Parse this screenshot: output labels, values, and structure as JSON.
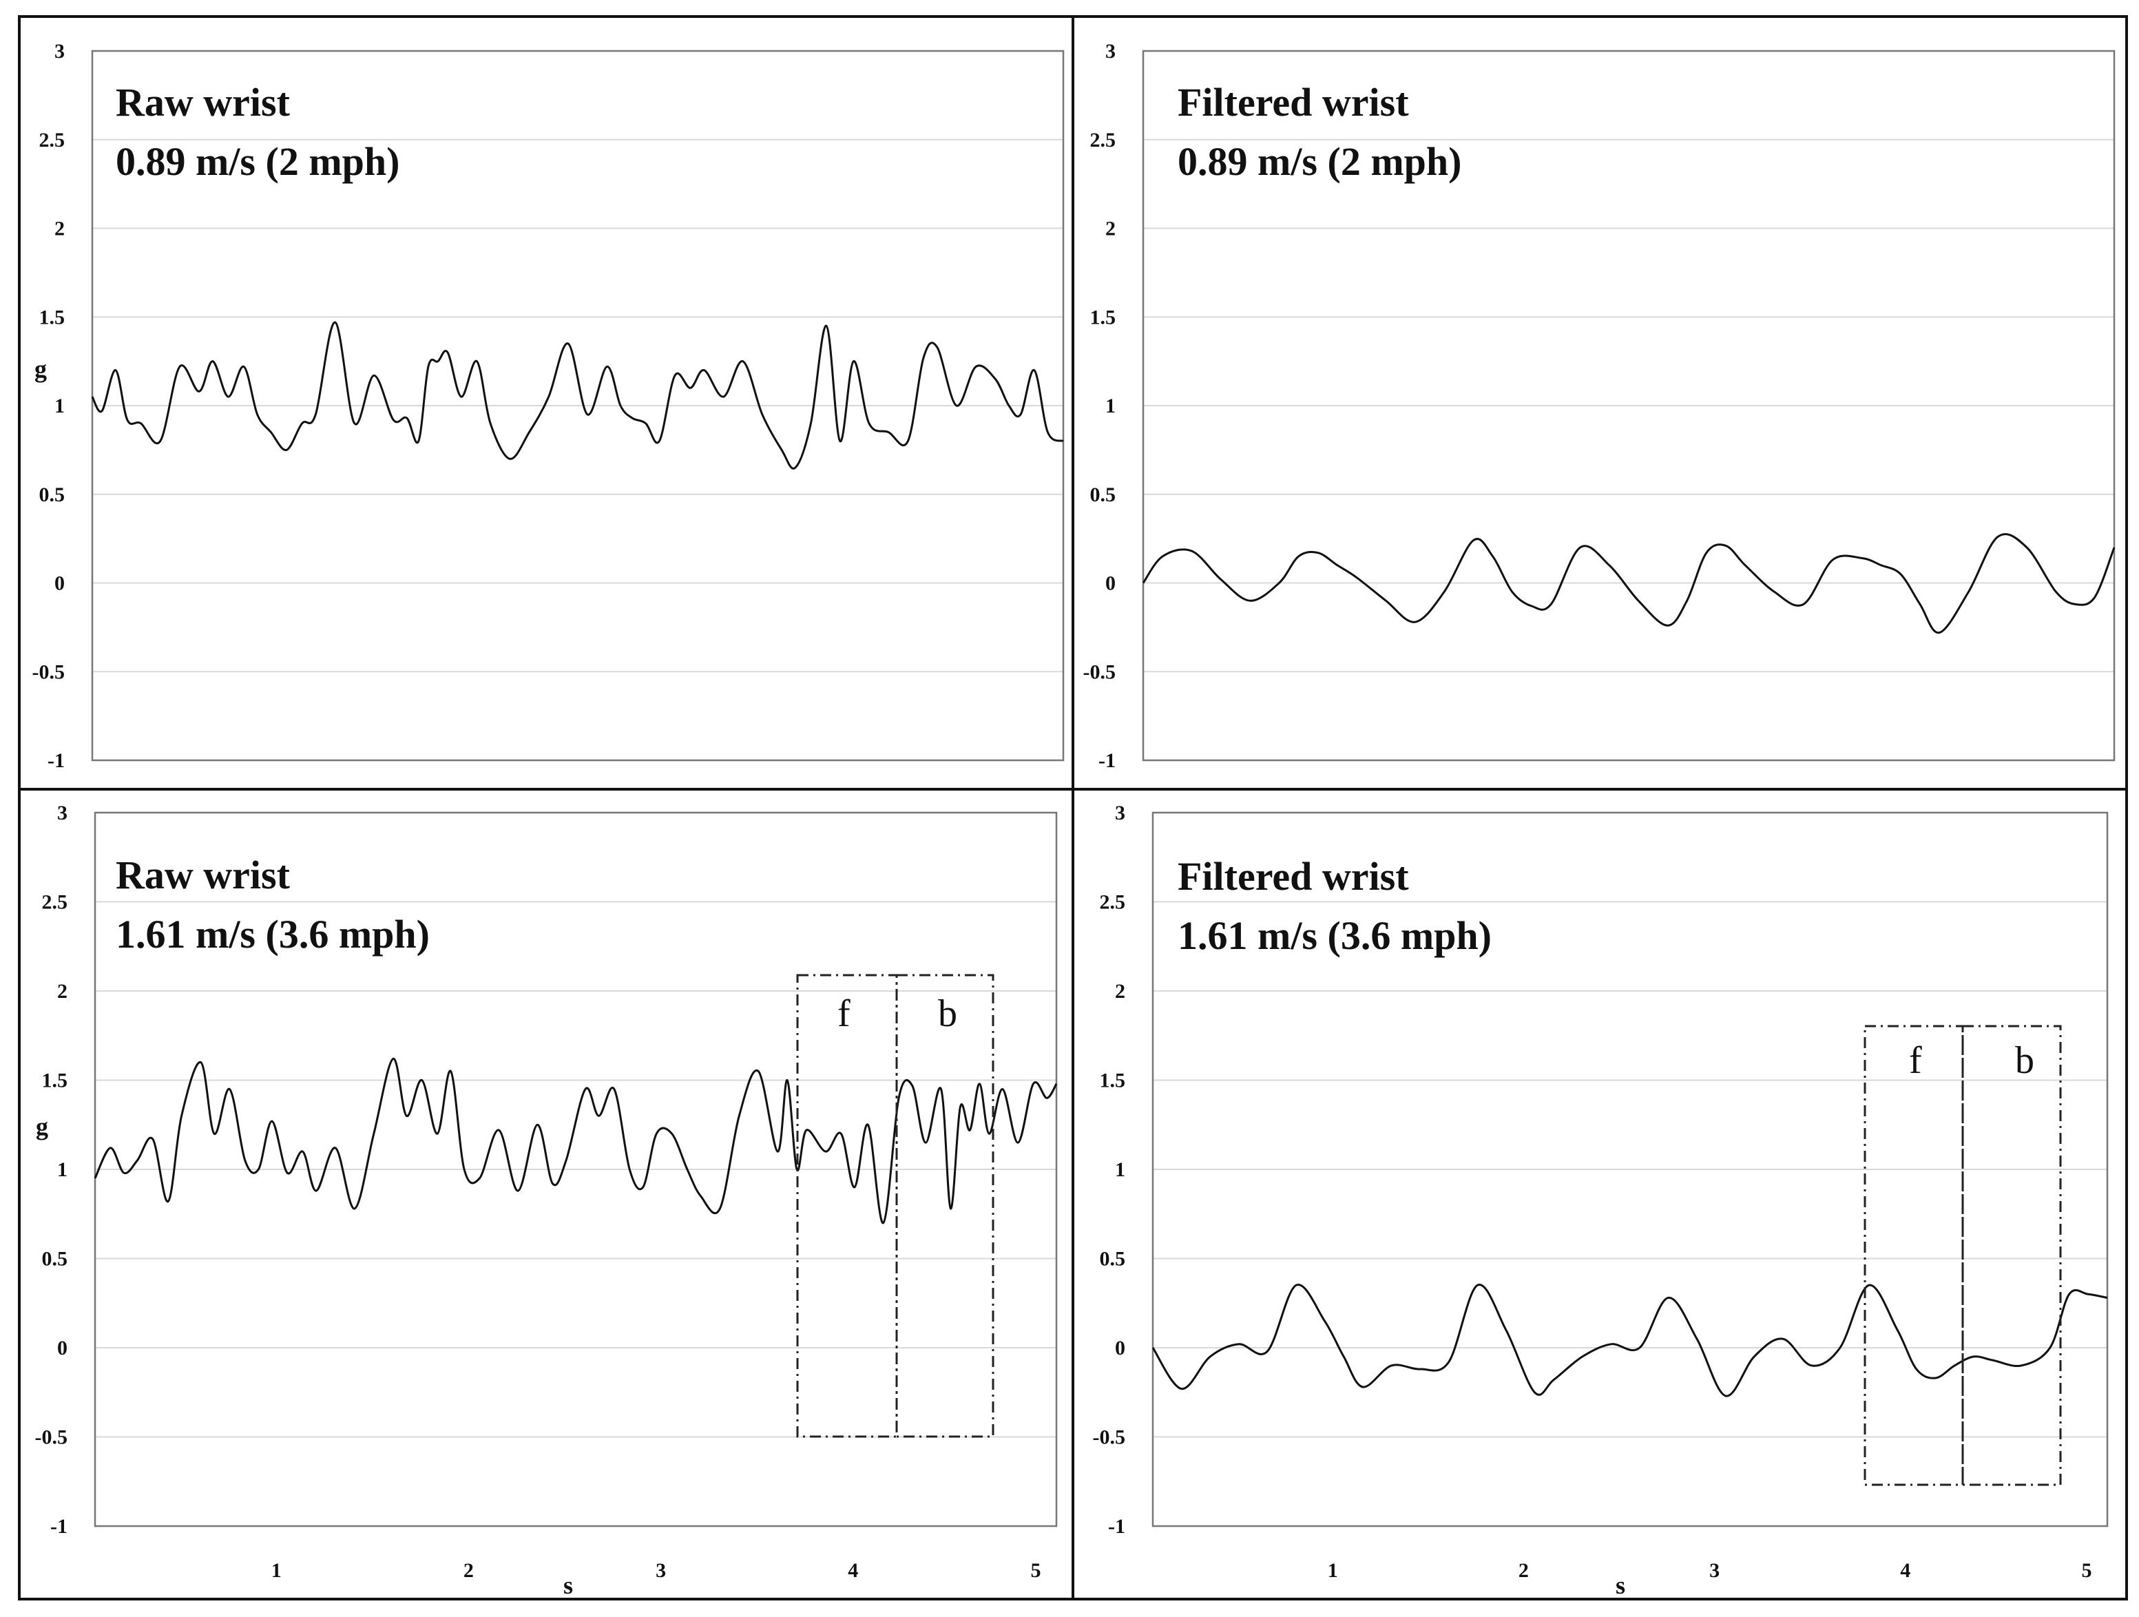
{
  "figure": {
    "x_unit_label": "s",
    "y_unit_label": "g"
  },
  "chart_data": [
    {
      "type": "line",
      "title": "Raw wrist",
      "subtitle": "0.89 m/s (2 mph)",
      "ylabel": "g",
      "ylim": [
        -1,
        3
      ],
      "yticks": [
        3,
        2.5,
        2,
        1.5,
        1,
        0.5,
        0,
        -0.5,
        -1
      ],
      "xlim": [
        0,
        5
      ],
      "xticks": [],
      "grid": true,
      "series": [
        {
          "x": [
            0.0,
            0.05,
            0.12,
            0.18,
            0.25,
            0.35,
            0.45,
            0.55,
            0.62,
            0.7,
            0.78,
            0.85,
            0.92,
            1.0,
            1.08,
            1.15,
            1.25,
            1.35,
            1.45,
            1.55,
            1.62,
            1.68,
            1.73,
            1.78,
            1.83,
            1.9,
            1.98,
            2.05,
            2.15,
            2.25,
            2.35,
            2.45,
            2.55,
            2.65,
            2.72,
            2.78,
            2.85,
            2.92,
            3.0,
            3.08,
            3.15,
            3.25,
            3.35,
            3.45,
            3.55,
            3.62,
            3.7,
            3.78,
            3.85,
            3.92,
            4.0,
            4.1,
            4.2,
            4.28,
            4.35,
            4.45,
            4.55,
            4.65,
            4.72,
            4.78,
            4.85,
            4.92,
            5.0
          ],
          "values": [
            1.05,
            0.97,
            1.2,
            0.92,
            0.9,
            0.8,
            1.22,
            1.08,
            1.25,
            1.05,
            1.22,
            0.95,
            0.85,
            0.75,
            0.9,
            0.95,
            1.47,
            0.9,
            1.17,
            0.92,
            0.93,
            0.8,
            1.22,
            1.25,
            1.3,
            1.05,
            1.25,
            0.9,
            0.7,
            0.85,
            1.05,
            1.35,
            0.95,
            1.22,
            1.0,
            0.93,
            0.9,
            0.8,
            1.17,
            1.1,
            1.2,
            1.05,
            1.25,
            0.95,
            0.75,
            0.65,
            0.9,
            1.45,
            0.8,
            1.25,
            0.9,
            0.85,
            0.8,
            1.27,
            1.33,
            1.0,
            1.22,
            1.15,
            1.0,
            0.95,
            1.2,
            0.85,
            0.8
          ]
        }
      ]
    },
    {
      "type": "line",
      "title": "Filtered wrist",
      "subtitle": "0.89 m/s (2 mph)",
      "ylabel": "",
      "ylim": [
        -1,
        3
      ],
      "yticks": [
        3,
        2.5,
        2,
        1.5,
        1,
        0.5,
        0,
        -0.5,
        -1
      ],
      "xlim": [
        0,
        5
      ],
      "xticks": [],
      "grid": true,
      "series": [
        {
          "x": [
            0.0,
            0.1,
            0.25,
            0.4,
            0.55,
            0.7,
            0.8,
            0.9,
            1.0,
            1.1,
            1.25,
            1.4,
            1.55,
            1.7,
            1.8,
            1.9,
            2.0,
            2.1,
            2.25,
            2.4,
            2.55,
            2.7,
            2.8,
            2.9,
            3.0,
            3.1,
            3.25,
            3.4,
            3.55,
            3.7,
            3.8,
            3.9,
            4.0,
            4.1,
            4.25,
            4.4,
            4.55,
            4.7,
            4.8,
            4.9,
            5.0
          ],
          "values": [
            0.0,
            0.15,
            0.18,
            0.02,
            -0.1,
            0.0,
            0.15,
            0.17,
            0.1,
            0.03,
            -0.1,
            -0.22,
            -0.05,
            0.24,
            0.15,
            -0.05,
            -0.13,
            -0.12,
            0.2,
            0.1,
            -0.1,
            -0.24,
            -0.1,
            0.17,
            0.21,
            0.1,
            -0.05,
            -0.12,
            0.13,
            0.14,
            0.1,
            0.05,
            -0.12,
            -0.28,
            -0.05,
            0.26,
            0.2,
            -0.05,
            -0.12,
            -0.08,
            0.2
          ]
        }
      ]
    },
    {
      "type": "line",
      "title": "Raw wrist",
      "subtitle": "1.61 m/s (3.6 mph)",
      "ylabel": "g",
      "ylim": [
        -1,
        3
      ],
      "yticks": [
        3,
        2.5,
        2,
        1.5,
        1,
        0.5,
        0,
        -0.5,
        -1
      ],
      "xlim": [
        0,
        5
      ],
      "xticks": [
        1,
        2,
        3,
        4,
        5
      ],
      "xlabel": "s",
      "grid": true,
      "series": [
        {
          "x": [
            0.0,
            0.08,
            0.15,
            0.22,
            0.3,
            0.38,
            0.45,
            0.55,
            0.62,
            0.7,
            0.78,
            0.85,
            0.92,
            1.0,
            1.08,
            1.15,
            1.25,
            1.35,
            1.45,
            1.55,
            1.62,
            1.7,
            1.78,
            1.85,
            1.92,
            2.0,
            2.1,
            2.2,
            2.3,
            2.38,
            2.45,
            2.55,
            2.62,
            2.7,
            2.78,
            2.85,
            2.92,
            3.0,
            3.08,
            3.15,
            3.25,
            3.35,
            3.45,
            3.55,
            3.6,
            3.65,
            3.7,
            3.8,
            3.88,
            3.95,
            4.02,
            4.1,
            4.18,
            4.25,
            4.32,
            4.4,
            4.45,
            4.5,
            4.55,
            4.6,
            4.65,
            4.72,
            4.8,
            4.88,
            4.95,
            5.0
          ],
          "values": [
            0.95,
            1.12,
            0.98,
            1.05,
            1.17,
            0.82,
            1.3,
            1.6,
            1.2,
            1.45,
            1.05,
            1.0,
            1.27,
            0.98,
            1.1,
            0.88,
            1.12,
            0.78,
            1.2,
            1.62,
            1.3,
            1.5,
            1.2,
            1.55,
            1.0,
            0.95,
            1.22,
            0.88,
            1.25,
            0.92,
            1.05,
            1.45,
            1.3,
            1.45,
            1.0,
            0.9,
            1.2,
            1.2,
            1.0,
            0.85,
            0.78,
            1.3,
            1.55,
            1.1,
            1.5,
            1.0,
            1.22,
            1.1,
            1.2,
            0.9,
            1.25,
            0.7,
            1.4,
            1.47,
            1.15,
            1.45,
            0.78,
            1.35,
            1.22,
            1.48,
            1.2,
            1.45,
            1.15,
            1.48,
            1.4,
            1.48
          ]
        }
      ],
      "annotations": [
        "f",
        "b"
      ]
    },
    {
      "type": "line",
      "title": "Filtered wrist",
      "subtitle": "1.61 m/s (3.6 mph)",
      "ylabel": "",
      "ylim": [
        -1,
        3
      ],
      "yticks": [
        3,
        2.5,
        2,
        1.5,
        1,
        0.5,
        0,
        -0.5,
        -1
      ],
      "xlim": [
        0,
        5
      ],
      "xticks": [
        1,
        2,
        3,
        4,
        5
      ],
      "xlabel": "s",
      "grid": true,
      "series": [
        {
          "x": [
            0.0,
            0.15,
            0.3,
            0.45,
            0.6,
            0.75,
            0.9,
            1.0,
            1.1,
            1.25,
            1.4,
            1.55,
            1.7,
            1.85,
            2.0,
            2.1,
            2.25,
            2.4,
            2.55,
            2.7,
            2.85,
            3.0,
            3.15,
            3.3,
            3.45,
            3.6,
            3.75,
            3.9,
            4.0,
            4.1,
            4.2,
            4.3,
            4.4,
            4.55,
            4.7,
            4.8,
            4.9,
            5.0
          ],
          "values": [
            0.0,
            -0.23,
            -0.05,
            0.02,
            -0.02,
            0.35,
            0.15,
            -0.05,
            -0.22,
            -0.1,
            -0.12,
            -0.08,
            0.35,
            0.1,
            -0.25,
            -0.18,
            -0.05,
            0.02,
            0.0,
            0.28,
            0.05,
            -0.27,
            -0.05,
            0.05,
            -0.1,
            0.0,
            0.35,
            0.1,
            -0.12,
            -0.17,
            -0.1,
            -0.05,
            -0.07,
            -0.1,
            0.0,
            0.3,
            0.3,
            0.28
          ]
        }
      ],
      "annotations": [
        "f",
        "b"
      ]
    }
  ]
}
